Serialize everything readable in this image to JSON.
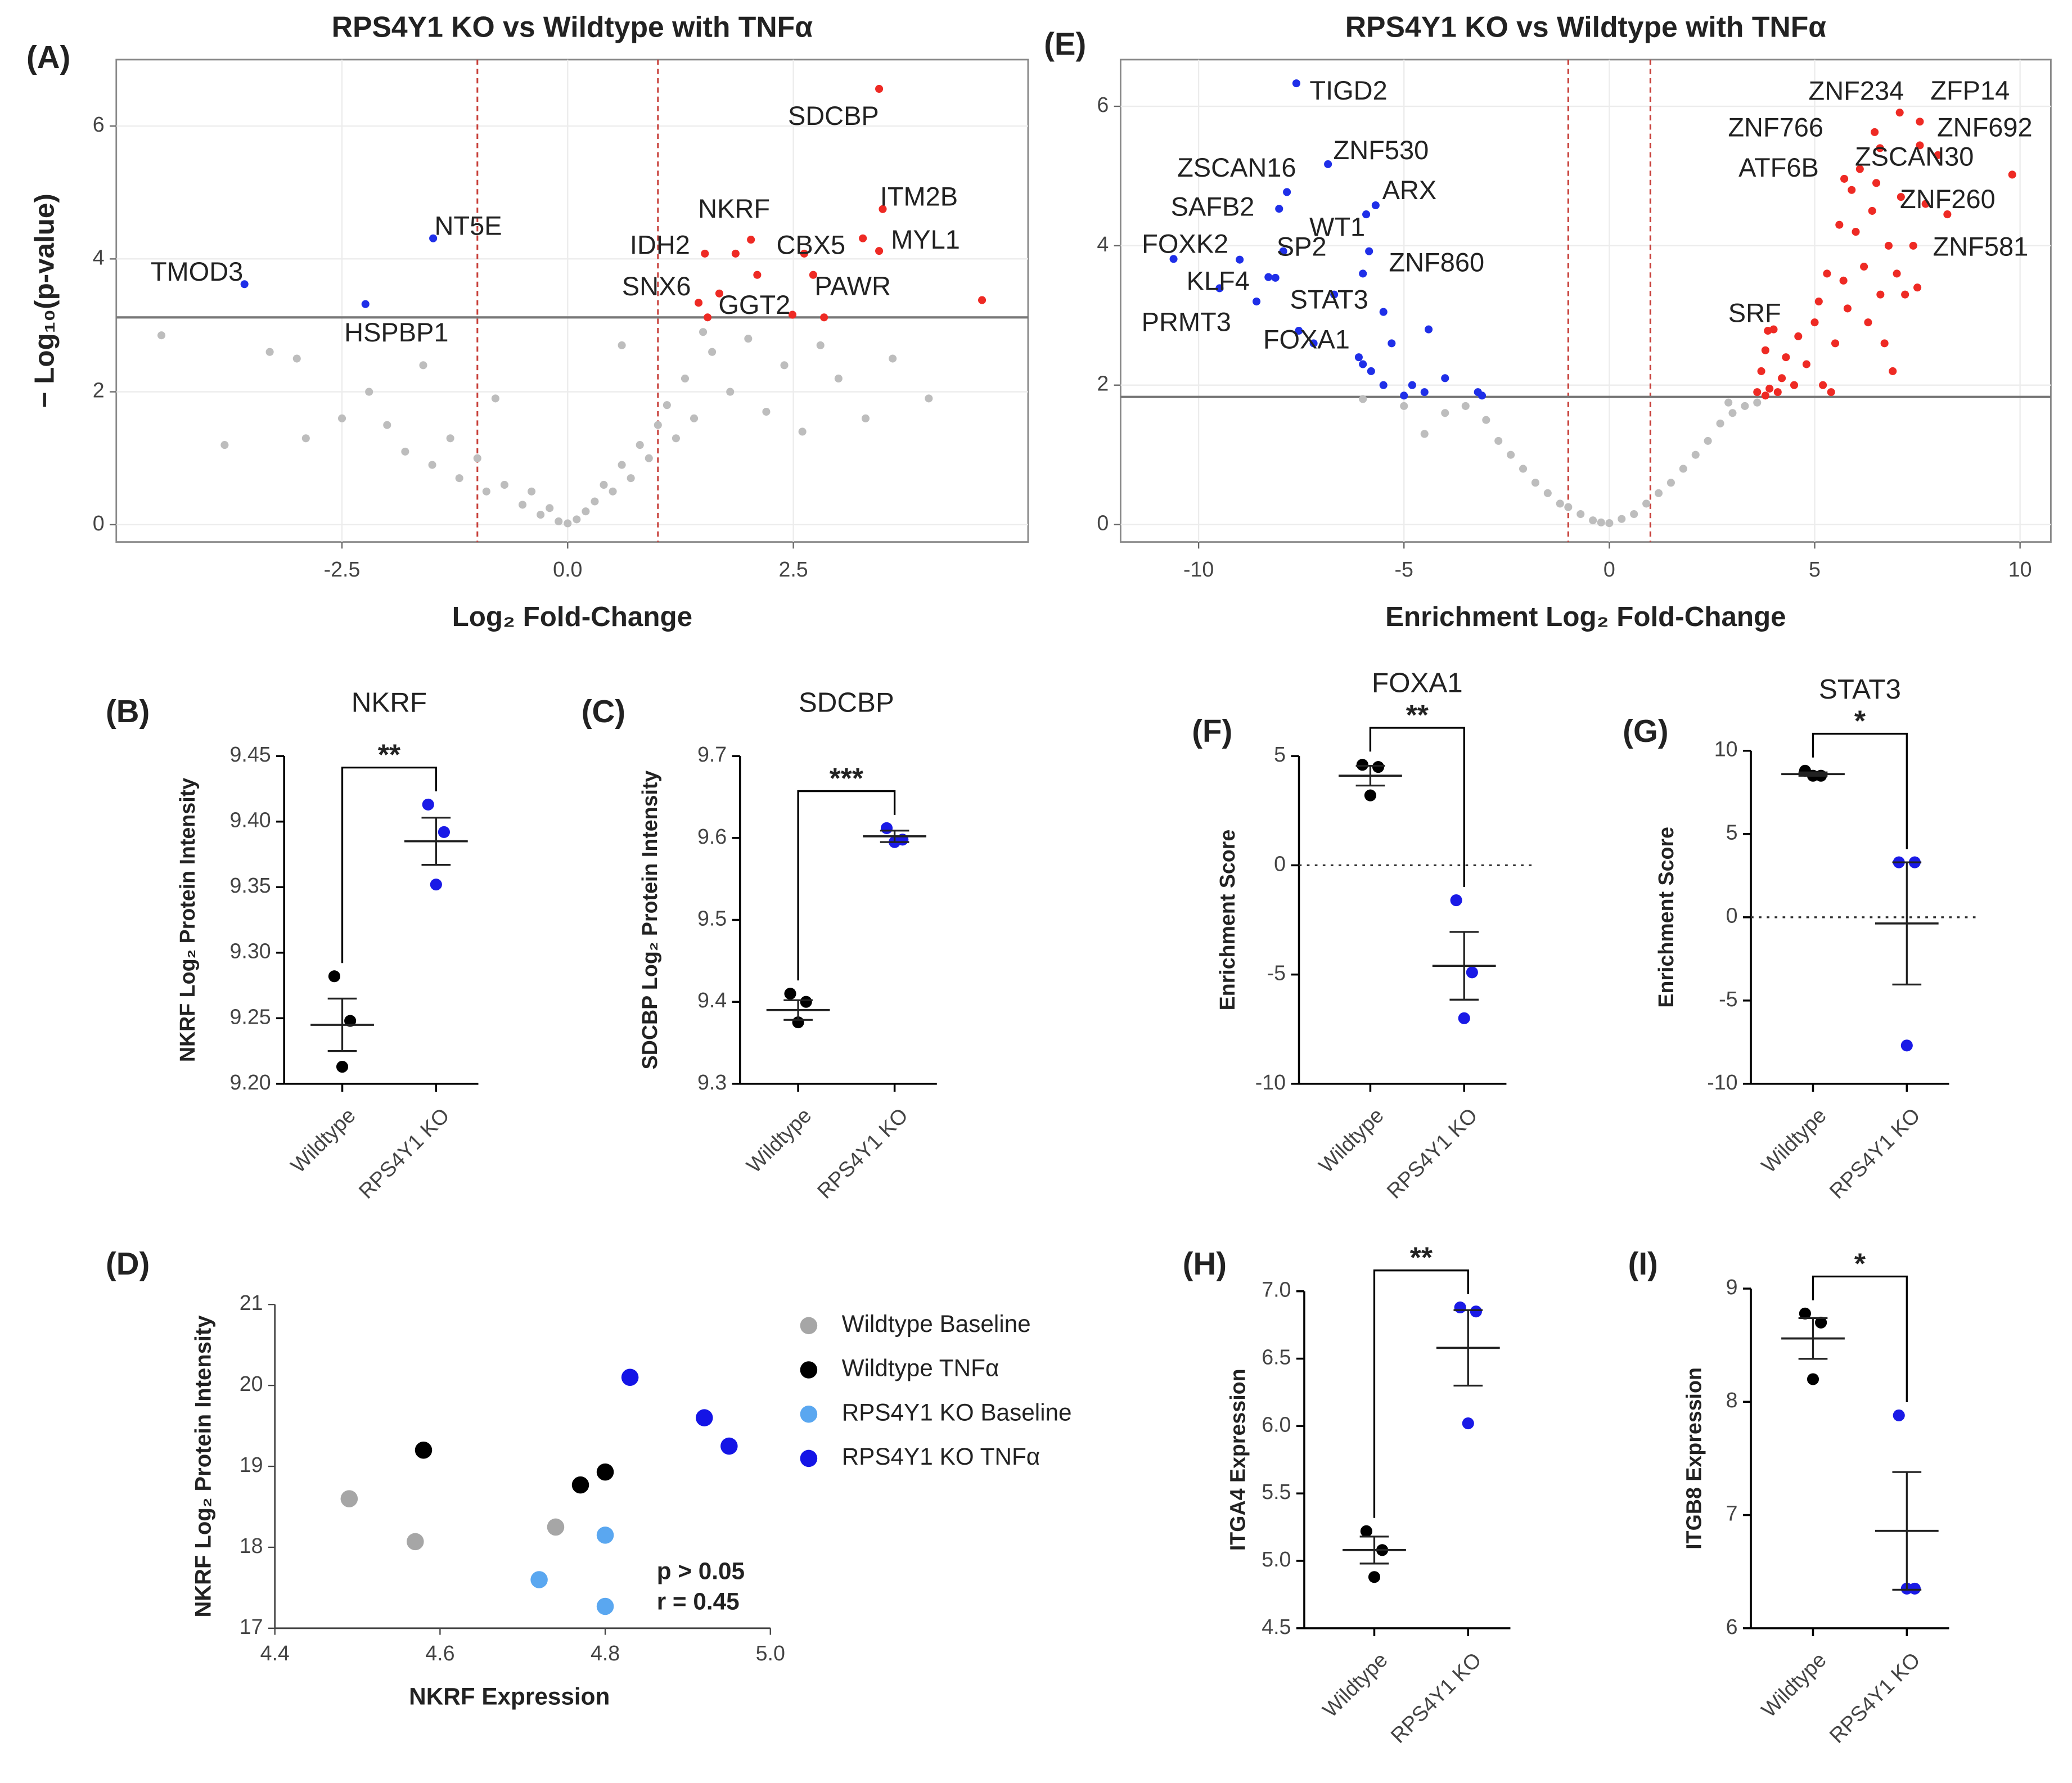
{
  "chart_data": [
    {
      "type": "volcano",
      "panel": "(A)",
      "title": "RPS4Y1 KO vs Wildtype with TNFα",
      "xlabel": "Log₂ Fold-Change",
      "ylabel": "− Log₁₀(p-value)",
      "xlim": [
        -5,
        5.1
      ],
      "ylim": [
        -0.26,
        7
      ],
      "xticks": [
        -2.5,
        {
          "value": 0,
          "label": "0.0"
        },
        2.5
      ],
      "yticks": [
        0,
        2,
        4,
        6
      ],
      "grid": true,
      "threshold_y": 3.12,
      "fold_lines": [
        -1,
        1
      ],
      "fold_color": "#c8403a",
      "series": [
        {
          "color": "#1f2fe8",
          "x": [
            -3.58,
            -2.24,
            -1.49
          ],
          "values": [
            3.62,
            3.32,
            4.31
          ],
          "labels": [
            "TMOD3",
            "HSPBP1",
            "NT5E"
          ]
        },
        {
          "color": "#ee2a24",
          "x": [
            3.45,
            3.49,
            3.45,
            2.03,
            1.86,
            2.62,
            2.72,
            1.45,
            2.49
          ],
          "values": [
            6.56,
            4.75,
            4.12,
            4.29,
            4.08,
            4.08,
            3.76,
            3.34,
            3.16
          ],
          "labels": [
            "SDCBP",
            "ITM2B",
            "MYL1",
            "NKRF",
            "IDH2",
            "CBX5",
            "PAWR",
            "SNX6",
            "GGT2"
          ]
        },
        {
          "color": "#ee2a24",
          "x": [
            3.27,
            4.59,
            1.52,
            2.1,
            1.55,
            2.84,
            1.68
          ],
          "values": [
            4.31,
            3.38,
            4.08,
            3.76,
            3.12,
            3.12,
            3.48
          ]
        },
        {
          "color": "#bdbdbd",
          "x": [
            -4.5,
            -3.8,
            -3.0,
            -2.9,
            -2.5,
            -2.2,
            -2.0,
            -1.8,
            -1.6,
            -1.5,
            -1.3,
            -1.2,
            -1.0,
            -0.9,
            -0.7,
            -0.5,
            -0.4,
            -0.3,
            -0.2,
            -0.1,
            0,
            0.1,
            0.2,
            0.3,
            0.4,
            0.5,
            0.6,
            0.7,
            0.8,
            0.9,
            1.0,
            1.1,
            1.2,
            1.3,
            1.4,
            1.6,
            1.8,
            2.0,
            2.2,
            2.4,
            2.6,
            3.0,
            3.3,
            3.6,
            4.0,
            -3.3,
            0.6,
            1.5,
            -0.8,
            2.8
          ],
          "values": [
            2.85,
            1.2,
            2.5,
            1.3,
            1.6,
            2.0,
            1.5,
            1.1,
            2.4,
            0.9,
            1.3,
            0.7,
            1.0,
            0.5,
            0.6,
            0.3,
            0.5,
            0.15,
            0.25,
            0.05,
            0.02,
            0.08,
            0.2,
            0.35,
            0.6,
            0.5,
            0.9,
            0.7,
            1.2,
            1.0,
            1.5,
            1.8,
            1.3,
            2.2,
            1.6,
            2.6,
            2.0,
            2.8,
            1.7,
            2.4,
            1.4,
            2.2,
            1.6,
            2.5,
            1.9,
            2.6,
            2.7,
            2.9,
            1.9,
            2.7
          ]
        }
      ]
    },
    {
      "type": "volcano",
      "panel": "(E)",
      "title": "RPS4Y1 KO vs Wildtype with TNFα",
      "xlabel": "Enrichment Log₂ Fold-Change",
      "xlim": [
        -11.9,
        10.75
      ],
      "ylim": [
        -0.25,
        6.67
      ],
      "xticks": [
        -10,
        -5,
        0,
        5,
        10
      ],
      "yticks": [
        0,
        2,
        4,
        6
      ],
      "grid": true,
      "threshold_y": 1.83,
      "fold_lines": [
        -1,
        1
      ],
      "fold_color": "#c8403a",
      "series": [
        {
          "color": "#1f2fe8",
          "x": [
            -7.62,
            -6.85,
            -7.85,
            -8.04,
            -5.69,
            -5.92,
            -7.94,
            -5.85,
            -10.61,
            -9.49,
            -8.13,
            -8.59,
            -7.56
          ],
          "values": [
            6.33,
            5.17,
            4.77,
            4.53,
            4.58,
            4.45,
            3.92,
            3.92,
            3.81,
            3.39,
            3.54,
            3.2,
            2.78
          ],
          "labels": [
            "TIGD2",
            "ZNF530",
            "ZSCAN16",
            "SAFB2",
            "ARX",
            "WT1",
            "SP2",
            "ZNF860",
            "FOXK2",
            "KLF4",
            "STAT3",
            "PRMT3",
            "FOXA1"
          ]
        },
        {
          "color": "#ee2a24",
          "x": [
            7.07,
            7.56,
            6.46,
            7.56,
            6.59,
            5.72,
            9.81,
            8.23,
            3.86
          ],
          "values": [
            5.91,
            5.78,
            5.63,
            5.44,
            5.4,
            4.96,
            5.02,
            4.45,
            2.78
          ],
          "labels": [
            "ZNF234",
            "ZFP14",
            "ZNF766",
            "ZNF692",
            "ZSCAN30",
            "ATF6B",
            "ZNF260",
            "ZNF581",
            "SRF"
          ]
        },
        {
          "color": "#ee2a24",
          "x": [
            3.6,
            3.7,
            3.8,
            3.9,
            4.0,
            4.2,
            4.3,
            4.5,
            4.6,
            4.8,
            5.0,
            5.1,
            5.2,
            5.4,
            5.5,
            5.7,
            5.8,
            6.0,
            6.2,
            6.3,
            6.4,
            6.6,
            6.8,
            6.9,
            7.0,
            7.1,
            7.2,
            7.4,
            7.5,
            5.9,
            6.1,
            6.5,
            5.6,
            7.7,
            8.0,
            4.1,
            3.8,
            6.7,
            5.3
          ],
          "values": [
            1.9,
            2.2,
            2.5,
            1.95,
            2.8,
            2.1,
            2.4,
            2.0,
            2.7,
            2.3,
            2.9,
            3.2,
            2.0,
            1.9,
            2.6,
            3.5,
            3.1,
            4.2,
            3.7,
            2.9,
            4.5,
            3.3,
            4.0,
            2.2,
            3.6,
            4.7,
            3.3,
            4.0,
            3.4,
            4.8,
            5.1,
            4.9,
            4.3,
            4.6,
            5.3,
            1.9,
            1.85,
            2.6,
            3.6
          ]
        },
        {
          "color": "#1f2fe8",
          "x": [
            -9.0,
            -8.3,
            -7.2,
            -6.0,
            -5.5,
            -5.3,
            -6.0,
            -5.8,
            -5.5,
            -4.8,
            -4.5,
            -4.4,
            -4.0,
            -3.2,
            -3.1,
            -5.0,
            -6.1,
            -6.7
          ],
          "values": [
            3.8,
            3.55,
            2.6,
            3.6,
            3.05,
            2.6,
            2.3,
            2.2,
            2.0,
            2.0,
            1.9,
            2.8,
            2.1,
            1.9,
            1.85,
            1.85,
            2.4,
            3.3
          ]
        },
        {
          "color": "#bdbdbd",
          "x": [
            -4,
            -3.5,
            -3,
            -2.7,
            -2.4,
            -2.1,
            -1.8,
            -1.5,
            -1.2,
            -1,
            -0.7,
            -0.4,
            -0.2,
            0,
            0.3,
            0.6,
            0.9,
            1.2,
            1.5,
            1.8,
            2.1,
            2.4,
            2.7,
            3.0,
            3.3,
            3.6,
            -5,
            -4.5,
            2.9,
            -6
          ],
          "values": [
            1.6,
            1.7,
            1.5,
            1.2,
            1.0,
            0.8,
            0.6,
            0.45,
            0.3,
            0.25,
            0.15,
            0.06,
            0.03,
            0.02,
            0.08,
            0.15,
            0.3,
            0.45,
            0.6,
            0.8,
            1.0,
            1.2,
            1.45,
            1.6,
            1.7,
            1.75,
            1.7,
            1.3,
            1.75,
            1.8
          ]
        }
      ]
    },
    {
      "type": "dot",
      "panel": "(B)",
      "title": "NKRF",
      "ylabel": "NKRF Log₂ Protein Intensity",
      "categories": [
        "Wildtype",
        "RPS4Y1 KO"
      ],
      "colors": [
        "#000000",
        "#1a1ae6"
      ],
      "values": [
        [
          9.282,
          9.248,
          9.213
        ],
        [
          9.413,
          9.392,
          9.352
        ]
      ],
      "means": [
        9.245,
        9.385
      ],
      "sems": [
        0.02,
        0.018
      ],
      "significance": "**",
      "ylim": [
        9.2,
        9.45
      ],
      "yticks": [
        {
          "value": 9.2,
          "label": "9.20"
        },
        9.25,
        {
          "value": 9.3,
          "label": "9.30"
        },
        9.35,
        {
          "value": 9.4,
          "label": "9.40"
        },
        9.45
      ]
    },
    {
      "type": "dot",
      "panel": "(C)",
      "title": "SDCBP",
      "ylabel": "SDCBP Log₂ Protein Intensity",
      "categories": [
        "Wildtype",
        "RPS4Y1 KO"
      ],
      "colors": [
        "#000000",
        "#1a1ae6"
      ],
      "values": [
        [
          9.41,
          9.4,
          9.375
        ],
        [
          9.612,
          9.598,
          9.595
        ]
      ],
      "means": [
        9.39,
        9.602
      ],
      "sems": [
        0.012,
        0.007
      ],
      "significance": "***",
      "ylim": [
        9.3,
        9.7
      ],
      "yticks": [
        9.3,
        9.4,
        9.5,
        9.6,
        9.7
      ]
    },
    {
      "type": "dot",
      "panel": "(F)",
      "title": "FOXA1",
      "ylabel": "Enrichment Score",
      "categories": [
        "Wildtype",
        "RPS4Y1 KO"
      ],
      "colors": [
        "#000000",
        "#1a1ae6"
      ],
      "values": [
        [
          4.6,
          4.5,
          3.2
        ],
        [
          -1.6,
          -4.9,
          -7.0
        ]
      ],
      "means": [
        4.1,
        -4.6
      ],
      "sems": [
        0.45,
        1.55
      ],
      "significance": "**",
      "zero_line": 0,
      "ylim": [
        -10,
        5
      ],
      "yticks": [
        5,
        0,
        -5,
        -10
      ]
    },
    {
      "type": "dot",
      "panel": "(G)",
      "title": "STAT3",
      "ylabel": "Enrichment Score",
      "categories": [
        "Wildtype",
        "RPS4Y1 KO"
      ],
      "colors": [
        "#000000",
        "#1a1ae6"
      ],
      "values": [
        [
          8.8,
          8.5,
          8.5
        ],
        [
          3.3,
          3.3,
          -7.7
        ]
      ],
      "means": [
        8.6,
        -0.37
      ],
      "sems": [
        0.1,
        3.67
      ],
      "significance": "*",
      "zero_line": 0,
      "ylim": [
        -10,
        10
      ],
      "yticks": [
        10,
        5,
        0,
        -5,
        -10
      ]
    },
    {
      "type": "scatter",
      "panel": "(D)",
      "xlabel": "NKRF Expression",
      "ylabel": "NKRF Log₂ Protein Intensity",
      "annotations": [
        "p > 0.05",
        "r = 0.45"
      ],
      "xlim": [
        4.4,
        5.0
      ],
      "ylim": [
        17,
        21
      ],
      "xticks": [
        4.4,
        4.6,
        4.8,
        {
          "value": 5,
          "label": "5.0"
        }
      ],
      "yticks": [
        17,
        18,
        19,
        20,
        21
      ],
      "series": [
        {
          "name": "Wildtype Baseline",
          "color": "#a6a6a6",
          "x": [
            4.49,
            4.57,
            4.74
          ],
          "values": [
            18.6,
            18.07,
            18.25
          ]
        },
        {
          "name": "Wildtype TNFα",
          "color": "#000000",
          "x": [
            4.58,
            4.77,
            4.8
          ],
          "values": [
            19.2,
            18.77,
            18.93
          ]
        },
        {
          "name": "RPS4Y1 KO Baseline",
          "color": "#5aa7f0",
          "x": [
            4.72,
            4.8,
            4.8
          ],
          "values": [
            17.6,
            18.15,
            17.27
          ]
        },
        {
          "name": "RPS4Y1 KO TNFα",
          "color": "#1414e6",
          "x": [
            4.83,
            4.92,
            4.95
          ],
          "values": [
            20.1,
            19.6,
            19.25
          ]
        }
      ]
    },
    {
      "type": "dot",
      "panel": "(H)",
      "ylabel": "ITGA4 Expression",
      "categories": [
        "Wildtype",
        "RPS4Y1 KO"
      ],
      "colors": [
        "#000000",
        "#1a1ae6"
      ],
      "values": [
        [
          5.22,
          5.08,
          4.88
        ],
        [
          6.88,
          6.85,
          6.02
        ]
      ],
      "means": [
        5.08,
        6.58
      ],
      "sems": [
        0.1,
        0.28
      ],
      "significance": "**",
      "ylim": [
        4.5,
        7
      ],
      "yticks": [
        {
          "value": 7,
          "label": "7.0"
        },
        6.5,
        {
          "value": 6,
          "label": "6.0"
        },
        5.5,
        {
          "value": 5,
          "label": "5.0"
        },
        4.5
      ]
    },
    {
      "type": "dot",
      "panel": "(I)",
      "ylabel": "ITGB8 Expression",
      "categories": [
        "Wildtype",
        "RPS4Y1 KO"
      ],
      "colors": [
        "#000000",
        "#1a1ae6"
      ],
      "values": [
        [
          8.78,
          8.7,
          8.2
        ],
        [
          7.88,
          6.35,
          6.35
        ]
      ],
      "means": [
        8.56,
        6.86
      ],
      "sems": [
        0.18,
        0.52
      ],
      "significance": "*",
      "ylim": [
        6,
        9
      ],
      "yticks": [
        9,
        8,
        7,
        6
      ]
    }
  ]
}
